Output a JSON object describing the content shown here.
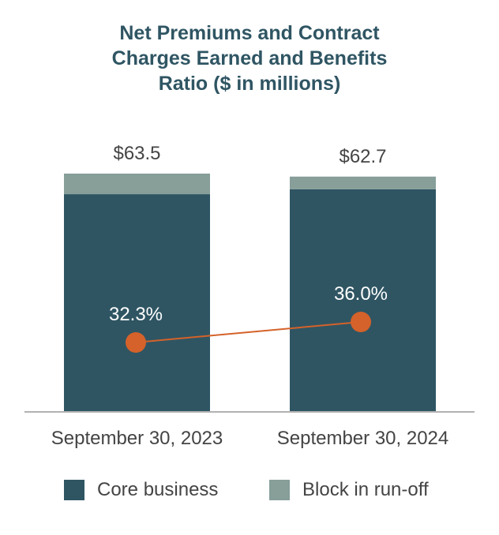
{
  "chart_data": {
    "type": "bar",
    "stacked": true,
    "title_lines": [
      "Net Premiums and Contract",
      "Charges Earned and Benefits",
      "Ratio ($ in millions)"
    ],
    "categories": [
      "September 30, 2023",
      "September 30, 2024"
    ],
    "series": [
      {
        "name": "Core business",
        "values": [
          58.0,
          59.3
        ],
        "color": "#2f5563"
      },
      {
        "name": "Block in run-off",
        "values": [
          5.5,
          3.4
        ],
        "color": "#879e99"
      }
    ],
    "totals": [
      63.5,
      62.7
    ],
    "total_labels": [
      "$63.5",
      "$62.7"
    ],
    "line_series": {
      "values": [
        32.3,
        36.0
      ],
      "labels": [
        "32.3%",
        "36.0%"
      ],
      "color": "#d4622a"
    },
    "ylim": [
      0,
      63.5
    ],
    "grid": false,
    "legend_position": "bottom"
  }
}
